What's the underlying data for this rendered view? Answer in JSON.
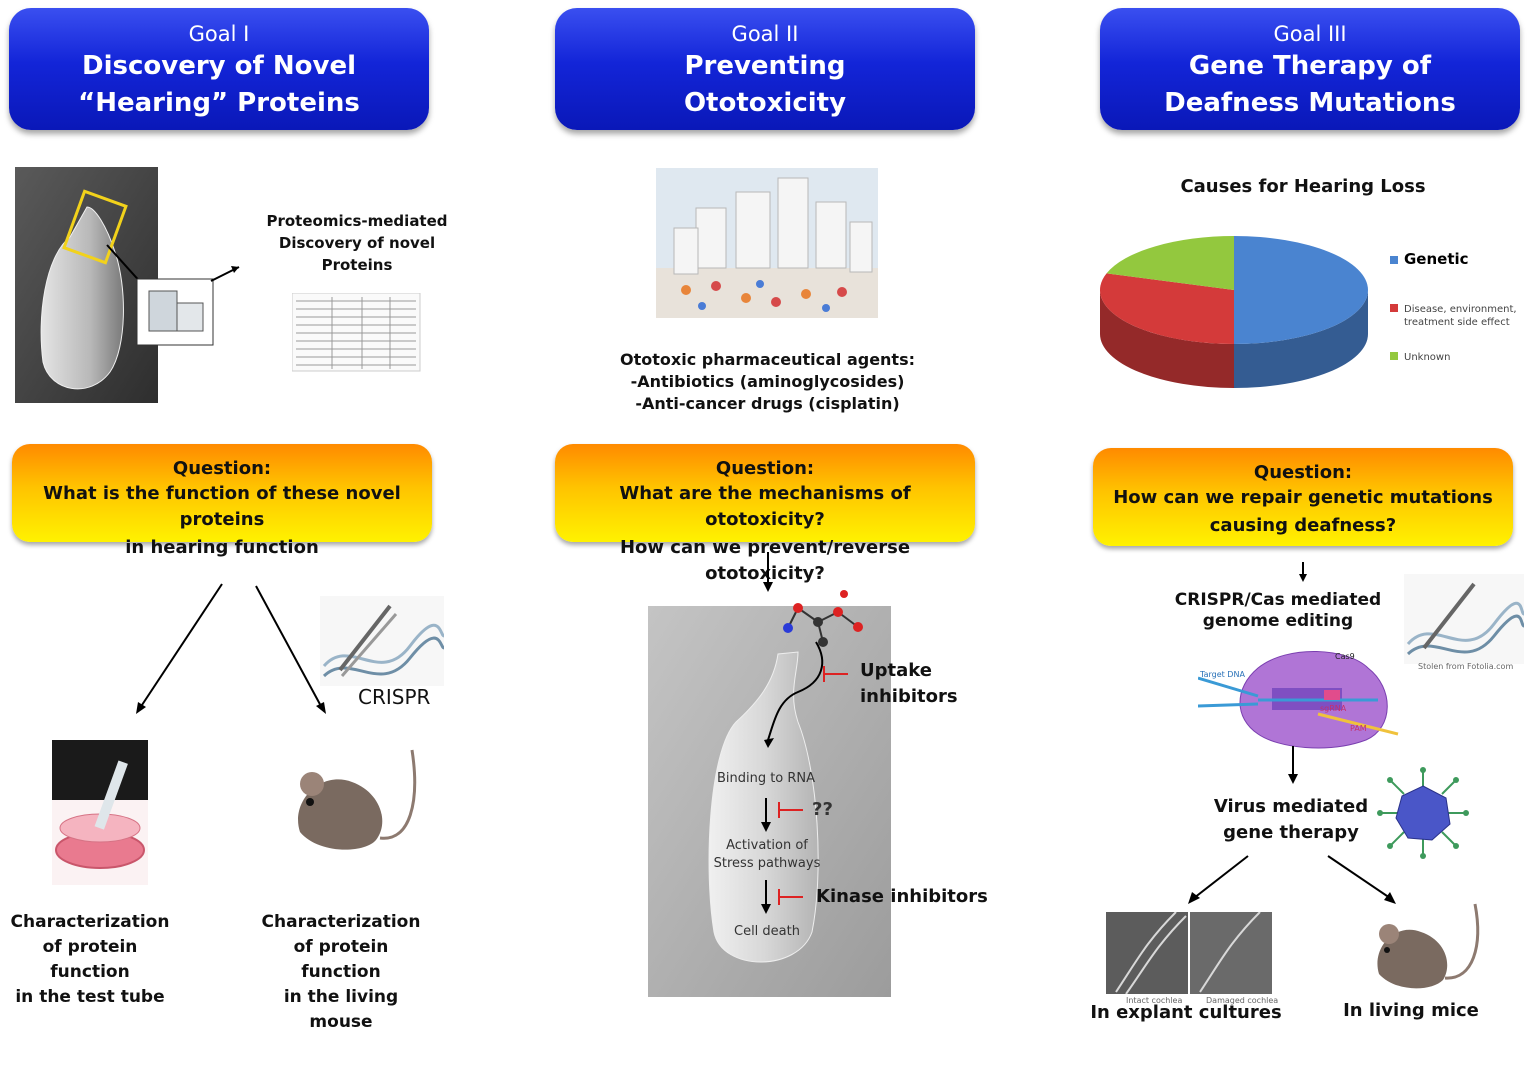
{
  "goals": [
    {
      "number": "Goal I",
      "title_line1": "Discovery of Novel",
      "title_line2": "“Hearing” Proteins"
    },
    {
      "number": "Goal II",
      "title_line1": "Preventing",
      "title_line2": "Ototoxicity"
    },
    {
      "number": "Goal III",
      "title_line1": "Gene Therapy of",
      "title_line2": "Deafness Mutations"
    }
  ],
  "col1": {
    "proteomics": [
      "Proteomics-mediated",
      "Discovery of novel",
      "Proteins"
    ],
    "question_head": "Question:",
    "question": [
      "What is the function of these novel proteins",
      "in hearing function"
    ],
    "crispr_label": "CRISPR",
    "left_caption": [
      "Characterization",
      "of protein function",
      "in the test tube"
    ],
    "right_caption": [
      "Characterization",
      "of protein function",
      "in the living mouse"
    ]
  },
  "col2": {
    "agents": [
      "Ototoxic pharmaceutical agents:",
      "-Antibiotics (aminoglycosides)",
      "-Anti-cancer drugs (cisplatin)"
    ],
    "question_head": "Question:",
    "question": [
      "What are the mechanisms of ototoxicity?",
      "How can we prevent/reverse ototoxicity?"
    ],
    "uptake": [
      "Uptake",
      "inhibitors"
    ],
    "binding": "Binding to RNA",
    "unknown": "??",
    "activation": [
      "Activation of",
      "Stress pathways"
    ],
    "kinase": "Kinase inhibitors",
    "death": "Cell death"
  },
  "col3": {
    "chart_title": "Causes for Hearing Loss",
    "question_head": "Question:",
    "question": [
      "How can we repair genetic mutations",
      "causing deafness?"
    ],
    "crispr": [
      "CRISPR/Cas mediated",
      "genome editing"
    ],
    "cas9_labels": [
      "Cas9",
      "Target DNA",
      "sgRNA",
      "PAM"
    ],
    "credit": "Stolen from Fotolia.com",
    "virus": [
      "Virus mediated",
      "gene therapy"
    ],
    "explant_sub": [
      "Intact cochlea",
      "Damaged cochlea"
    ],
    "explant": "In explant cultures",
    "mice": "In living mice"
  },
  "chart_data": {
    "type": "pie",
    "title": "Causes for Hearing Loss",
    "categories": [
      "Genetic",
      "Disease, environment, treatment side effect",
      "Unknown"
    ],
    "values": [
      50,
      30,
      20
    ],
    "colors": [
      "#4a84d0",
      "#d43a3a",
      "#93c83e"
    ],
    "legend": "right"
  }
}
